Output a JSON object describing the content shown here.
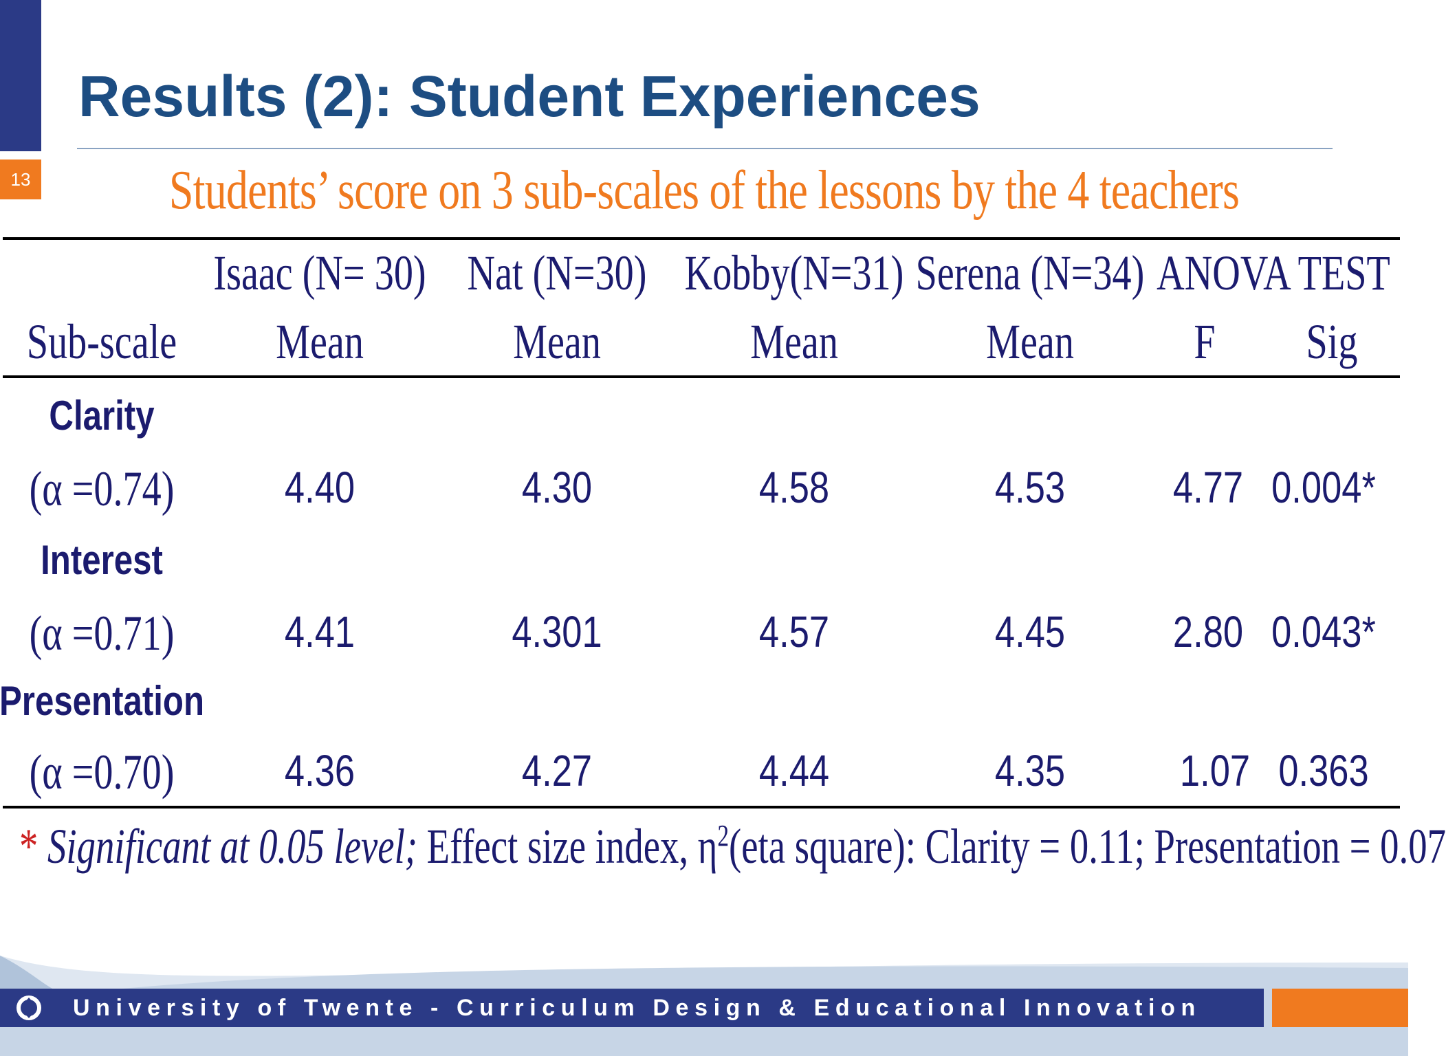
{
  "slide": {
    "number": "13",
    "title": "Results (2): Student Experiences",
    "subtitle": "Students’ score on 3 sub-scales of the lessons by the 4 teachers"
  },
  "table": {
    "group_headers": [
      "Isaac (N= 30)",
      "Nat (N=30)",
      "Kobby(N=31)",
      "Serena (N=34)",
      "ANOVA TEST"
    ],
    "column_headers": [
      "Sub-scale",
      "Mean",
      "Mean",
      "Mean",
      "Mean",
      "F",
      "Sig"
    ],
    "rows": [
      {
        "name": "Clarity",
        "alpha": "(α =0.74)",
        "values": [
          "4.40",
          "4.30",
          "4.58",
          "4.53",
          "4.77",
          "0.004*"
        ]
      },
      {
        "name": "Interest",
        "alpha": "(α =0.71)",
        "values": [
          "4.41",
          "4.301",
          "4.57",
          "4.45",
          "2.80",
          "0.043*"
        ]
      },
      {
        "name": "Presentation",
        "alpha": "(α =0.70)",
        "values": [
          "4.36",
          "4.27",
          "4.44",
          "4.35",
          "1.07",
          "0.363"
        ]
      }
    ]
  },
  "footnote": {
    "star": "*",
    "italic": "Significant at 0.05 level;",
    "text_a": "Effect size index, η",
    "sup": "2",
    "text_b": "(eta square): Clarity = 0.11; Presentation = 0.07"
  },
  "footer": {
    "text": "University of Twente - Curriculum Design & Educational Innovation"
  },
  "colors": {
    "title": "#1d4d82",
    "subtitle": "#f07a1f",
    "table_text": "#1b1b6e",
    "bar_blue": "#2b3a86",
    "accent_orange": "#f07a1f"
  }
}
